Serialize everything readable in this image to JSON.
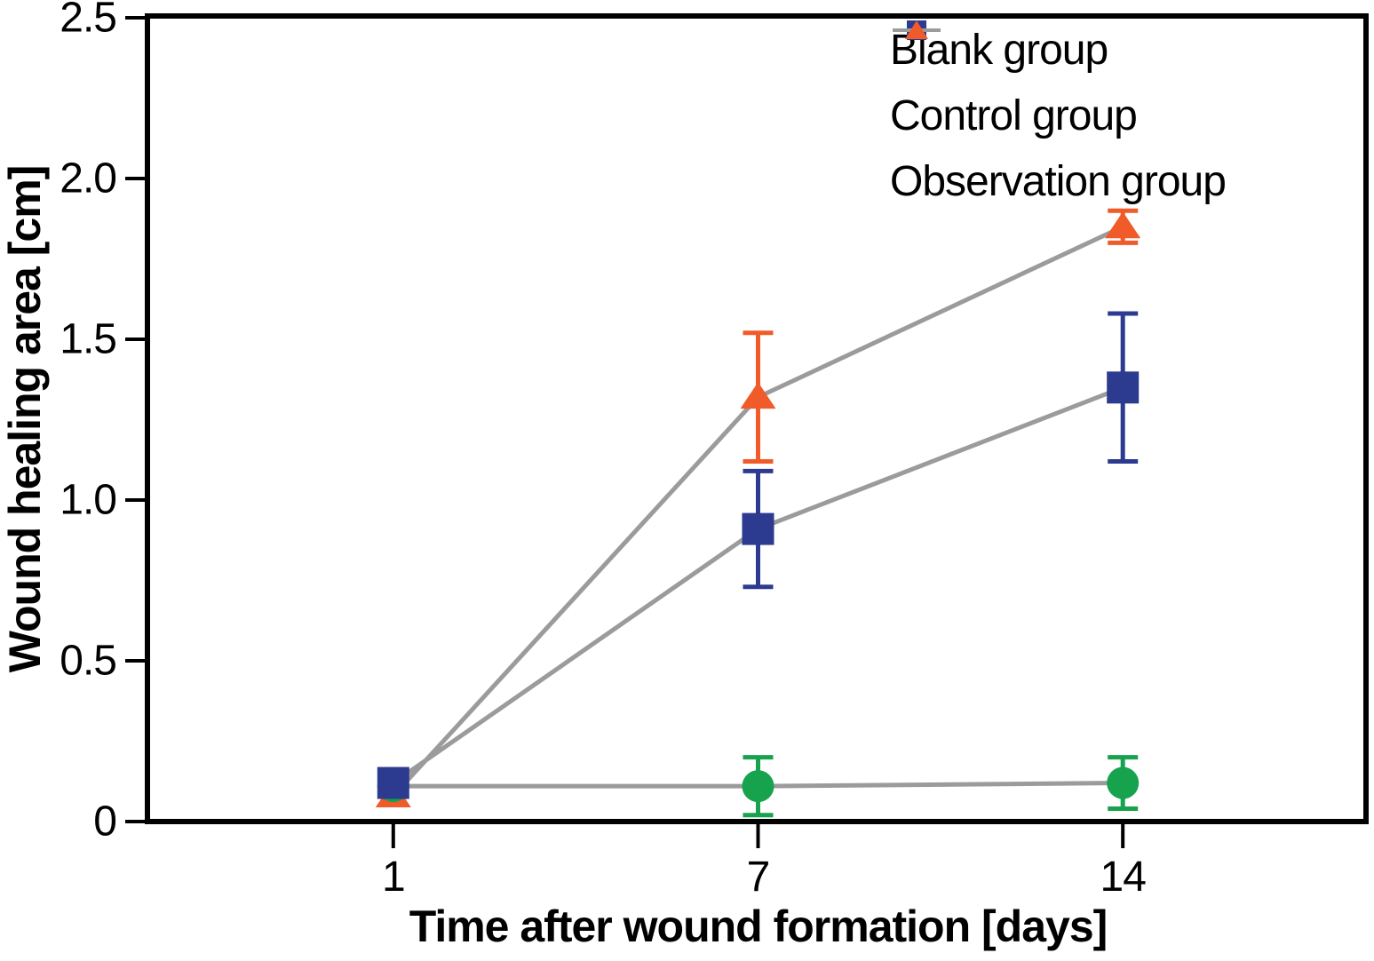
{
  "chart_data": {
    "type": "line",
    "title": "",
    "xlabel": "Time after wound formation [days]",
    "ylabel": "Wound healing area [cm]",
    "categories": [
      "1",
      "7",
      "14"
    ],
    "ylim": [
      0,
      2.5
    ],
    "y_tick_values": [
      0,
      0.5,
      1.0,
      1.5,
      2.0,
      2.5
    ],
    "y_tick_labels": [
      "0",
      "0.5",
      "1.0",
      "1.5",
      "2.0",
      "2.5"
    ],
    "grid": false,
    "legend_position": "inside-top-right",
    "line_color": "#9b9b9b",
    "axis_color": "#000000",
    "background_color": "#ffffff",
    "series": [
      {
        "name": "Blank group",
        "marker": "circle",
        "color": "#17a24e",
        "values": [
          0.11,
          0.11,
          0.12
        ],
        "errors": [
          0,
          0.09,
          0.08
        ]
      },
      {
        "name": "Control group",
        "marker": "square",
        "color": "#2c3b8f",
        "values": [
          0.12,
          0.91,
          1.35
        ],
        "errors": [
          0,
          0.18,
          0.23
        ]
      },
      {
        "name": "Observation group",
        "marker": "triangle",
        "color": "#f15a29",
        "values": [
          0.08,
          1.32,
          1.85
        ],
        "errors": [
          0,
          0.2,
          0.05
        ]
      }
    ]
  }
}
